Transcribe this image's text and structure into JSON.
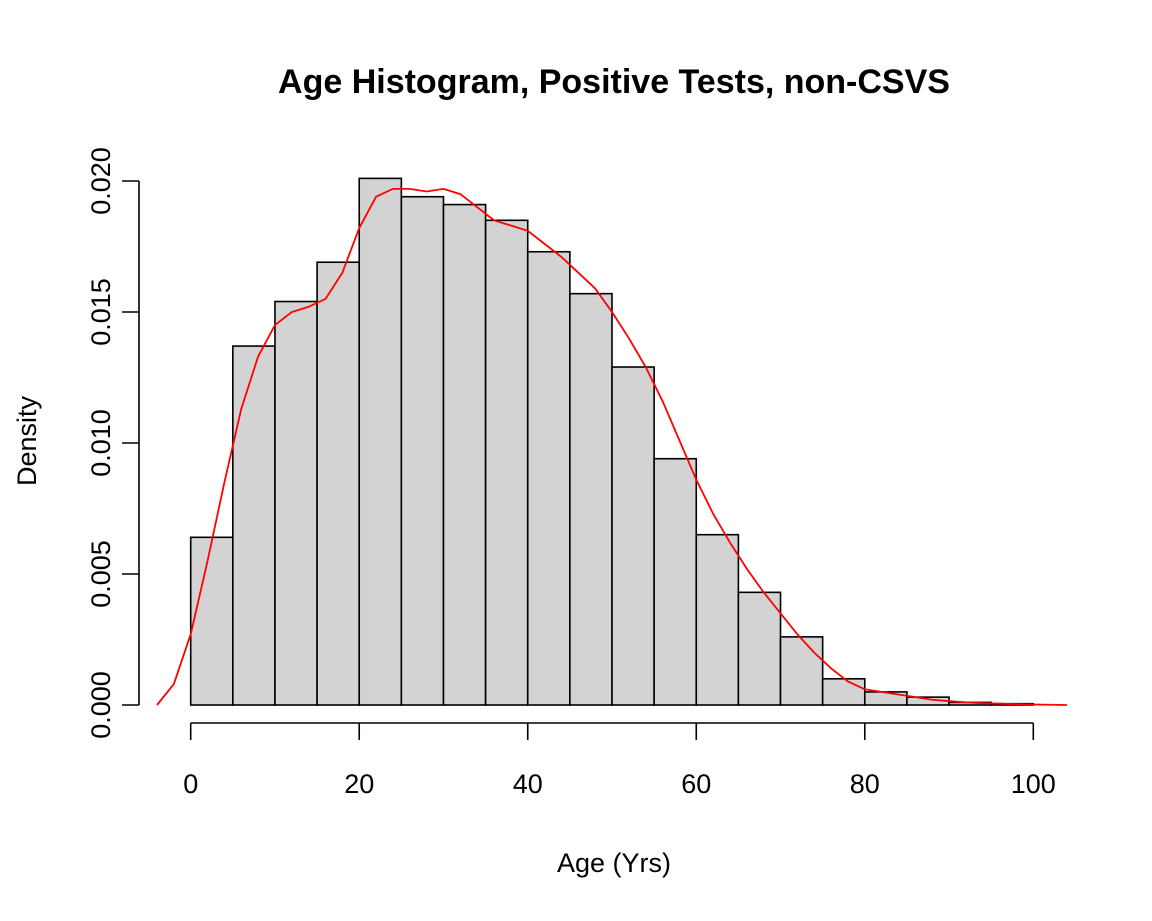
{
  "chart_data": {
    "type": "bar",
    "title": "Age Histogram, Positive Tests,  non-CSVS",
    "xlabel": "Age (Yrs)",
    "ylabel": "Density",
    "xlim": [
      -4,
      104
    ],
    "ylim": [
      0,
      0.02
    ],
    "x_ticks": [
      "0",
      "20",
      "40",
      "60",
      "80",
      "100"
    ],
    "y_ticks": [
      "0.000",
      "0.005",
      "0.010",
      "0.015",
      "0.020"
    ],
    "grid": false,
    "bins": [
      {
        "x0": 0,
        "x1": 5,
        "density": 0.0064
      },
      {
        "x0": 5,
        "x1": 10,
        "density": 0.0137
      },
      {
        "x0": 10,
        "x1": 15,
        "density": 0.0154
      },
      {
        "x0": 15,
        "x1": 20,
        "density": 0.0169
      },
      {
        "x0": 20,
        "x1": 25,
        "density": 0.0201
      },
      {
        "x0": 25,
        "x1": 30,
        "density": 0.0194
      },
      {
        "x0": 30,
        "x1": 35,
        "density": 0.0191
      },
      {
        "x0": 35,
        "x1": 40,
        "density": 0.0185
      },
      {
        "x0": 40,
        "x1": 45,
        "density": 0.0173
      },
      {
        "x0": 45,
        "x1": 50,
        "density": 0.0157
      },
      {
        "x0": 50,
        "x1": 55,
        "density": 0.0129
      },
      {
        "x0": 55,
        "x1": 60,
        "density": 0.0094
      },
      {
        "x0": 60,
        "x1": 65,
        "density": 0.0065
      },
      {
        "x0": 65,
        "x1": 70,
        "density": 0.0043
      },
      {
        "x0": 70,
        "x1": 75,
        "density": 0.0026
      },
      {
        "x0": 75,
        "x1": 80,
        "density": 0.001
      },
      {
        "x0": 80,
        "x1": 85,
        "density": 0.0005
      },
      {
        "x0": 85,
        "x1": 90,
        "density": 0.0003
      },
      {
        "x0": 90,
        "x1": 95,
        "density": 0.0001
      },
      {
        "x0": 95,
        "x1": 100,
        "density": 5e-05
      }
    ],
    "density_curve": {
      "color": "#ff0000",
      "x": [
        -4,
        -2,
        0,
        2,
        4,
        6,
        8,
        10,
        12,
        14,
        16,
        18,
        20,
        22,
        24,
        26,
        28,
        30,
        32,
        34,
        36,
        38,
        40,
        42,
        44,
        46,
        48,
        50,
        52,
        54,
        56,
        58,
        60,
        62,
        64,
        66,
        68,
        70,
        72,
        74,
        76,
        78,
        80,
        82,
        84,
        86,
        88,
        90,
        92,
        94,
        96,
        98,
        100,
        102,
        104
      ],
      "y": [
        0,
        0.0008,
        0.0027,
        0.0055,
        0.0085,
        0.0113,
        0.0133,
        0.0145,
        0.015,
        0.0152,
        0.0155,
        0.0165,
        0.0182,
        0.0194,
        0.0197,
        0.0197,
        0.0196,
        0.0197,
        0.0195,
        0.019,
        0.0185,
        0.0183,
        0.0181,
        0.0176,
        0.0171,
        0.0165,
        0.0159,
        0.015,
        0.014,
        0.0129,
        0.0116,
        0.0101,
        0.0086,
        0.0073,
        0.0062,
        0.0052,
        0.0043,
        0.0035,
        0.0027,
        0.002,
        0.0014,
        0.0009,
        0.0006,
        0.0005,
        0.0004,
        0.0003,
        0.0002,
        0.00015,
        0.0001,
        7e-05,
        5e-05,
        3e-05,
        2e-05,
        1e-05,
        0
      ]
    }
  }
}
